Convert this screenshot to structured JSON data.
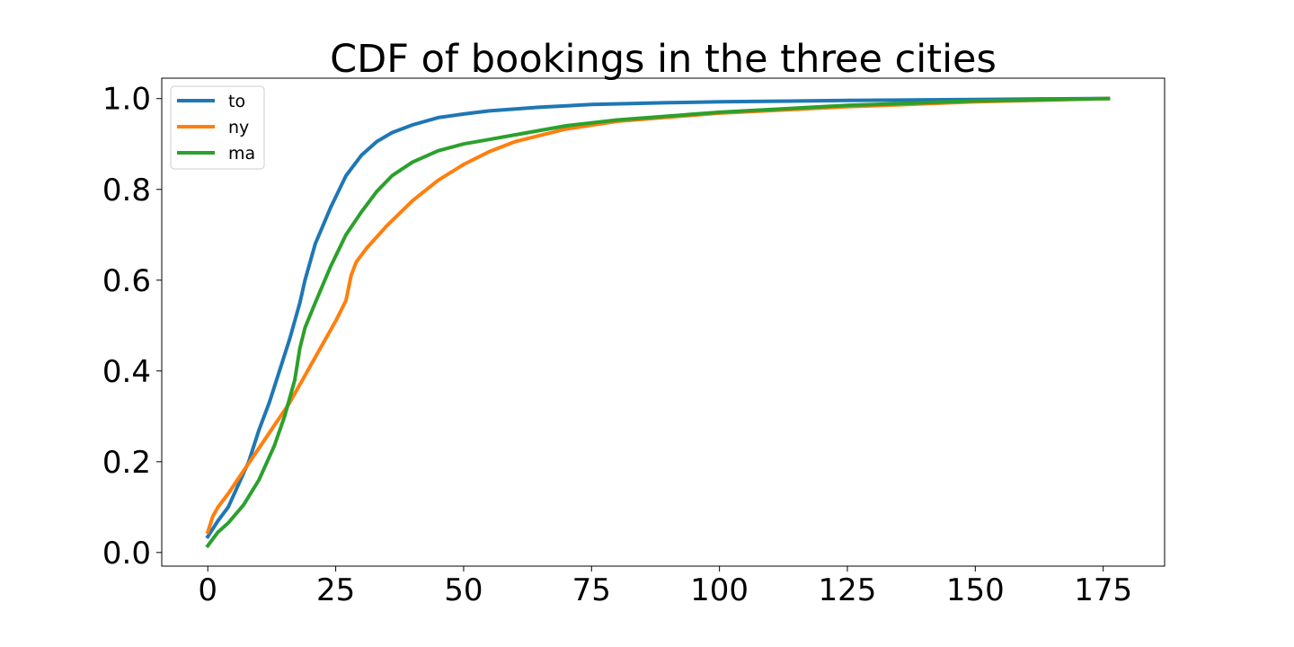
{
  "chart_data": {
    "type": "line",
    "title": "CDF of bookings in the three cities",
    "xlabel": "",
    "ylabel": "",
    "xlim": [
      -9,
      187
    ],
    "ylim": [
      -0.03,
      1.045
    ],
    "xticks": [
      0,
      25,
      50,
      75,
      100,
      125,
      150,
      175
    ],
    "yticks": [
      0.0,
      0.2,
      0.4,
      0.6,
      0.8,
      1.0
    ],
    "grid": false,
    "legend_position": "top-left",
    "series": [
      {
        "name": "to",
        "color": "#1f77b4",
        "points": [
          [
            0,
            0.035
          ],
          [
            2,
            0.07
          ],
          [
            4,
            0.1
          ],
          [
            6,
            0.15
          ],
          [
            8,
            0.2
          ],
          [
            10,
            0.27
          ],
          [
            12,
            0.33
          ],
          [
            14,
            0.4
          ],
          [
            16,
            0.47
          ],
          [
            18,
            0.55
          ],
          [
            19,
            0.6
          ],
          [
            21,
            0.68
          ],
          [
            24,
            0.76
          ],
          [
            27,
            0.83
          ],
          [
            30,
            0.875
          ],
          [
            33,
            0.905
          ],
          [
            36,
            0.925
          ],
          [
            40,
            0.942
          ],
          [
            45,
            0.958
          ],
          [
            50,
            0.966
          ],
          [
            55,
            0.973
          ],
          [
            65,
            0.981
          ],
          [
            75,
            0.987
          ],
          [
            90,
            0.991
          ],
          [
            100,
            0.993
          ],
          [
            125,
            0.996
          ],
          [
            150,
            0.998
          ],
          [
            176,
            1.0
          ]
        ]
      },
      {
        "name": "ny",
        "color": "#ff7f0e",
        "points": [
          [
            0,
            0.045
          ],
          [
            1,
            0.08
          ],
          [
            2,
            0.1
          ],
          [
            4,
            0.13
          ],
          [
            7,
            0.18
          ],
          [
            10,
            0.23
          ],
          [
            13,
            0.28
          ],
          [
            16,
            0.33
          ],
          [
            19,
            0.39
          ],
          [
            21,
            0.43
          ],
          [
            23,
            0.47
          ],
          [
            25,
            0.51
          ],
          [
            27,
            0.555
          ],
          [
            28,
            0.61
          ],
          [
            29,
            0.64
          ],
          [
            31,
            0.67
          ],
          [
            35,
            0.72
          ],
          [
            40,
            0.775
          ],
          [
            45,
            0.82
          ],
          [
            50,
            0.855
          ],
          [
            55,
            0.883
          ],
          [
            60,
            0.905
          ],
          [
            70,
            0.933
          ],
          [
            80,
            0.95
          ],
          [
            100,
            0.968
          ],
          [
            125,
            0.982
          ],
          [
            150,
            0.993
          ],
          [
            176,
            1.0
          ]
        ]
      },
      {
        "name": "ma",
        "color": "#2ca02c",
        "points": [
          [
            0,
            0.015
          ],
          [
            2,
            0.045
          ],
          [
            4,
            0.065
          ],
          [
            7,
            0.105
          ],
          [
            10,
            0.16
          ],
          [
            13,
            0.235
          ],
          [
            15,
            0.3
          ],
          [
            17,
            0.38
          ],
          [
            18,
            0.45
          ],
          [
            19,
            0.495
          ],
          [
            21,
            0.55
          ],
          [
            24,
            0.63
          ],
          [
            27,
            0.7
          ],
          [
            30,
            0.75
          ],
          [
            33,
            0.795
          ],
          [
            36,
            0.83
          ],
          [
            40,
            0.86
          ],
          [
            45,
            0.885
          ],
          [
            50,
            0.9
          ],
          [
            55,
            0.91
          ],
          [
            60,
            0.92
          ],
          [
            70,
            0.94
          ],
          [
            80,
            0.953
          ],
          [
            100,
            0.97
          ],
          [
            125,
            0.985
          ],
          [
            150,
            0.995
          ],
          [
            176,
            1.0
          ]
        ]
      }
    ]
  }
}
